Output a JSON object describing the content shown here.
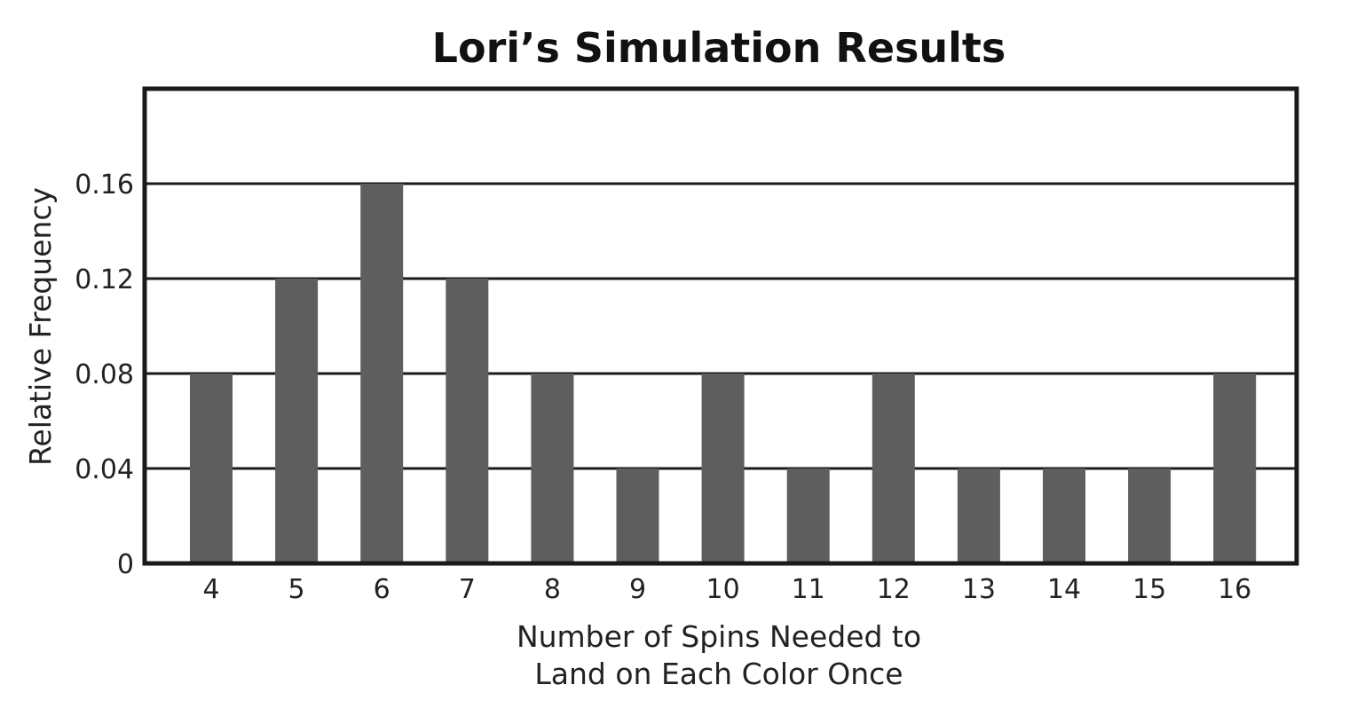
{
  "chart_data": {
    "type": "bar",
    "title": "Lori’s Simulation Results",
    "xlabel": [
      "Number of Spins Needed to",
      "Land on Each Color Once"
    ],
    "ylabel": "Relative Frequency",
    "categories": [
      "4",
      "5",
      "6",
      "7",
      "8",
      "9",
      "10",
      "11",
      "12",
      "13",
      "14",
      "15",
      "16"
    ],
    "values": [
      0.08,
      0.12,
      0.16,
      0.12,
      0.08,
      0.04,
      0.08,
      0.04,
      0.08,
      0.04,
      0.04,
      0.04,
      0.08
    ],
    "yticks": [
      "0",
      "0.04",
      "0.08",
      "0.12",
      "0.16"
    ],
    "ytick_values": [
      0,
      0.04,
      0.08,
      0.12,
      0.16
    ],
    "ylim": [
      0,
      0.2
    ],
    "grid": true,
    "legend": "none",
    "colors": {
      "bar": "#5e5e5e",
      "frame": "#1a1a1a",
      "grid": "#1a1a1a"
    }
  }
}
